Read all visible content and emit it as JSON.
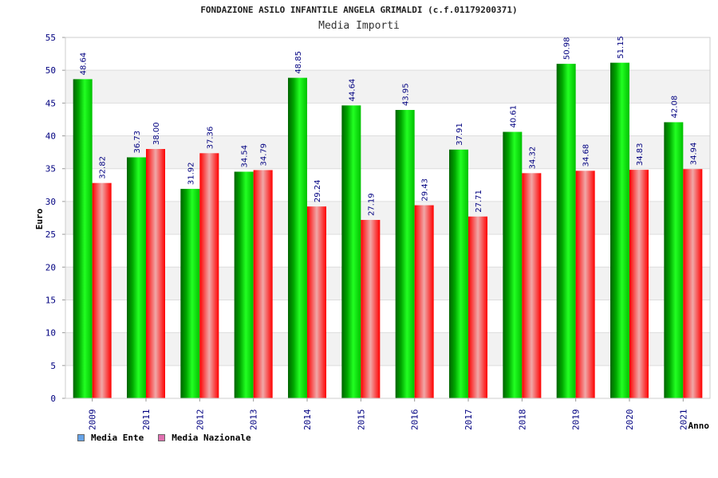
{
  "chart_data": {
    "type": "bar",
    "title": "FONDAZIONE ASILO INFANTILE ANGELA GRIMALDI (c.f.01179200371)",
    "subtitle": "Media Importi",
    "xlabel": "Anno",
    "ylabel": "Euro",
    "ylim": [
      0,
      55
    ],
    "yticks": [
      0,
      5,
      10,
      15,
      20,
      25,
      30,
      35,
      40,
      45,
      50,
      55
    ],
    "grid": true,
    "legend_position": "bottom-left",
    "categories": [
      "2009",
      "2011",
      "2012",
      "2013",
      "2014",
      "2015",
      "2016",
      "2017",
      "2018",
      "2019",
      "2020",
      "2021"
    ],
    "series": [
      {
        "name": "Media Ente",
        "color": "#00c000",
        "legend_color": "#66a3e8",
        "values": [
          48.64,
          36.73,
          31.92,
          34.54,
          48.85,
          44.64,
          43.95,
          37.91,
          40.61,
          50.98,
          51.15,
          42.08
        ],
        "labels": [
          "48.64",
          "36.73",
          "31.92",
          "34.54",
          "48.85",
          "44.64",
          "43.95",
          "37.91",
          "40.61",
          "50.98",
          "51.15",
          "42.08"
        ]
      },
      {
        "name": "Media Nazionale",
        "color": "#e00000",
        "legend_color": "#e070b0",
        "values": [
          32.82,
          38.0,
          37.36,
          34.79,
          29.24,
          27.19,
          29.43,
          27.71,
          34.32,
          34.68,
          34.83,
          34.94
        ],
        "labels": [
          "32.82",
          "38.00",
          "37.36",
          "34.79",
          "29.24",
          "27.19",
          "29.43",
          "27.71",
          "34.32",
          "34.68",
          "34.83",
          "34.94"
        ]
      }
    ]
  }
}
